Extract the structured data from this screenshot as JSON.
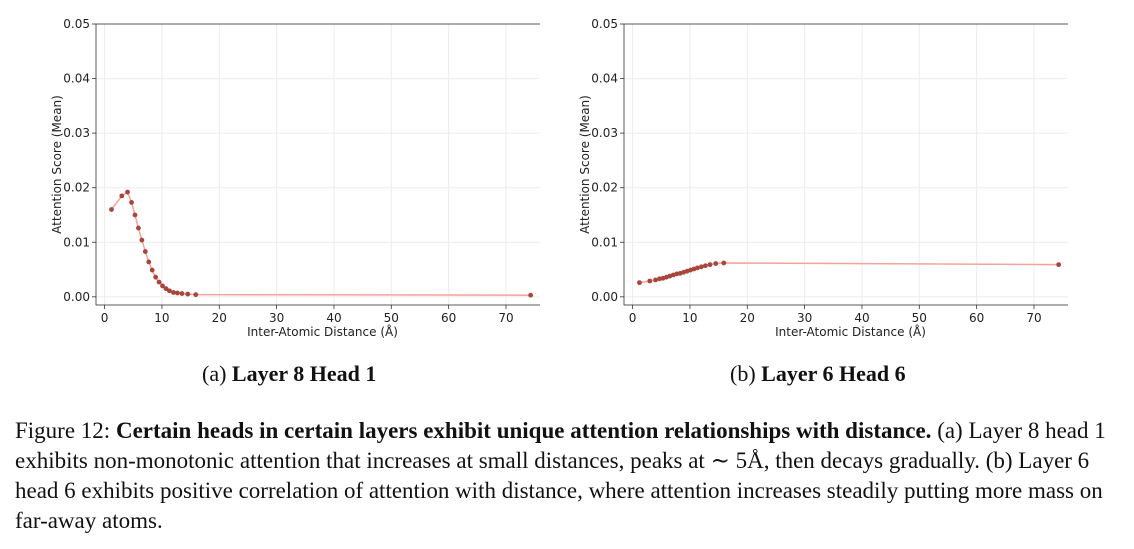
{
  "chart_data": [
    {
      "type": "line",
      "xlabel": "Inter-Atomic Distance (Å)",
      "ylabel": "Attention Score (Mean)",
      "xlim": [
        -1.5,
        77.5
      ],
      "ylim": [
        -0.0015,
        0.05
      ],
      "xticks": [
        0,
        10,
        20,
        30,
        40,
        50,
        60,
        70
      ],
      "yticks": [
        0.0,
        0.01,
        0.02,
        0.03,
        0.04,
        0.05
      ],
      "xtick_labels": [
        "0",
        "10",
        "20",
        "30",
        "40",
        "50",
        "60",
        "70"
      ],
      "ytick_labels": [
        "0.00",
        "0.01",
        "0.02",
        "0.03",
        "0.04",
        "0.05"
      ],
      "grid": true,
      "line_color": "#f2a49a",
      "marker_color": "#a8453c",
      "series": [
        {
          "x": [
            1.2,
            3.0,
            4.0,
            4.7,
            5.3,
            5.9,
            6.5,
            7.1,
            7.7,
            8.3,
            8.9,
            9.5,
            10.1,
            10.7,
            11.3,
            12.0,
            12.7,
            13.5,
            14.5,
            15.9,
            74.3
          ],
          "y": [
            0.016,
            0.0185,
            0.0192,
            0.0173,
            0.015,
            0.0126,
            0.0104,
            0.0083,
            0.0064,
            0.0049,
            0.0036,
            0.0027,
            0.002,
            0.0015,
            0.0011,
            0.0008,
            0.0007,
            0.0006,
            0.0005,
            0.0004,
            0.0003
          ]
        }
      ],
      "caption_label": "(a) ",
      "caption_bold": "Layer 8 Head 1"
    },
    {
      "type": "line",
      "xlabel": "Inter-Atomic Distance (Å)",
      "ylabel": "Attention Score (Mean)",
      "xlim": [
        -1.5,
        77.5
      ],
      "ylim": [
        -0.0015,
        0.05
      ],
      "xticks": [
        0,
        10,
        20,
        30,
        40,
        50,
        60,
        70
      ],
      "yticks": [
        0.0,
        0.01,
        0.02,
        0.03,
        0.04,
        0.05
      ],
      "xtick_labels": [
        "0",
        "10",
        "20",
        "30",
        "40",
        "50",
        "60",
        "70"
      ],
      "ytick_labels": [
        "0.00",
        "0.01",
        "0.02",
        "0.03",
        "0.04",
        "0.05"
      ],
      "grid": true,
      "line_color": "#f2a49a",
      "marker_color": "#a8453c",
      "series": [
        {
          "x": [
            1.2,
            3.0,
            4.0,
            4.7,
            5.3,
            5.9,
            6.5,
            7.1,
            7.7,
            8.3,
            8.9,
            9.5,
            10.1,
            10.7,
            11.3,
            12.0,
            12.7,
            13.5,
            14.5,
            15.9,
            74.3
          ],
          "y": [
            0.0026,
            0.0029,
            0.0031,
            0.0033,
            0.0034,
            0.0036,
            0.0038,
            0.004,
            0.0042,
            0.0043,
            0.0045,
            0.0047,
            0.0049,
            0.0051,
            0.0053,
            0.0055,
            0.0057,
            0.0059,
            0.0061,
            0.0062,
            0.0059
          ]
        }
      ],
      "caption_label": "(b) ",
      "caption_bold": "Layer 6 Head 6"
    }
  ],
  "caption": {
    "prefix": "Figure 12: ",
    "bold": "Certain heads in certain layers exhibit unique attention relationships with distance.",
    "rest": " (a) Layer 8 head 1 exhibits non-monotonic attention that increases at small distances, peaks at ∼ 5Å, then decays gradually. (b) Layer 6 head 6 exhibits positive correlation of attention with distance, where attention increases steadily putting more mass on far-away atoms."
  }
}
